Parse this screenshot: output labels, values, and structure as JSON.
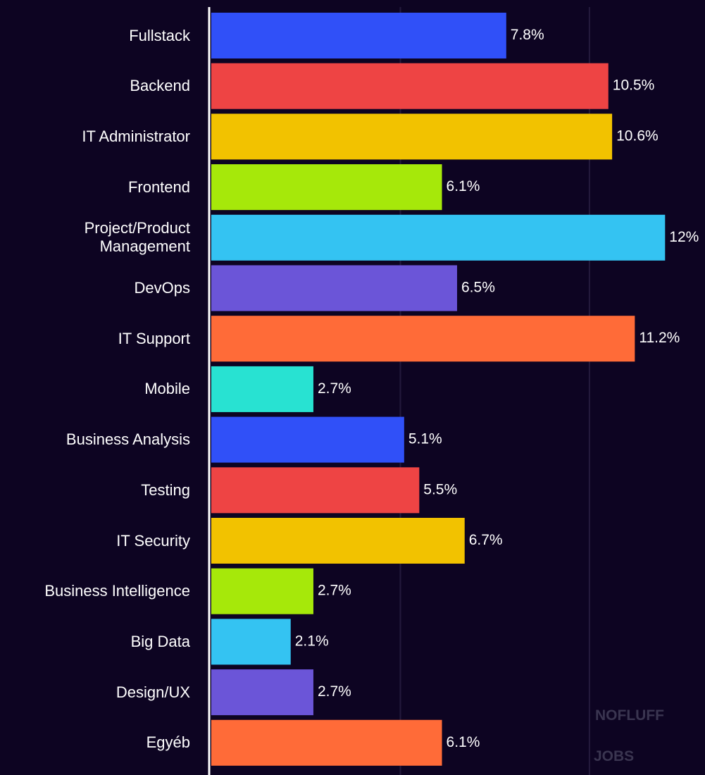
{
  "chart_data": {
    "type": "bar",
    "orientation": "horizontal",
    "categories": [
      "Fullstack",
      "Backend",
      "IT Administrator",
      "Frontend",
      "Project/Product\nManagement",
      "DevOps",
      "IT Support",
      "Mobile",
      "Business Analysis",
      "Testing",
      "IT Security",
      "Business Intelligence",
      "Big Data",
      "Design/UX",
      "Egyéb"
    ],
    "values": [
      7.8,
      10.5,
      10.6,
      6.1,
      12,
      6.5,
      11.2,
      2.7,
      5.1,
      5.5,
      6.7,
      2.7,
      2.1,
      2.7,
      6.1
    ],
    "value_labels": [
      "7.8%",
      "10.5%",
      "10.6%",
      "6.1%",
      "12%",
      "6.5%",
      "11.2%",
      "2.7%",
      "5.1%",
      "5.5%",
      "6.7%",
      "2.7%",
      "2.1%",
      "2.7%",
      "6.1%"
    ],
    "colors": [
      "#3050f8",
      "#ee4444",
      "#f2c200",
      "#a6e80a",
      "#34c3f2",
      "#6b55d8",
      "#ff6b38",
      "#28e2d2",
      "#3050f8",
      "#ee4444",
      "#f2c200",
      "#a6e80a",
      "#34c3f2",
      "#6b55d8",
      "#ff6b38"
    ],
    "xlim": [
      0,
      13
    ],
    "xticks": [
      5,
      10
    ],
    "grid": true
  },
  "watermark": [
    "NOFLUFF",
    "JOBS"
  ]
}
